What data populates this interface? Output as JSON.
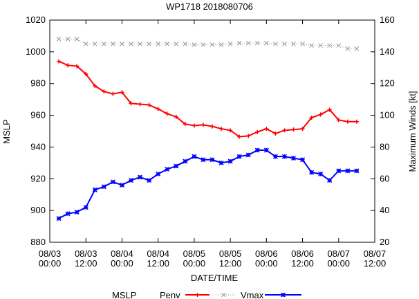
{
  "chart_data": {
    "type": "line",
    "title": "WP1718 2018080706",
    "xlabel": "DATE/TIME",
    "ylabel": "MSLP",
    "y2label": "Maximum Winds [kt]",
    "x_unit": "hours from 08/03 00:00",
    "xlim": [
      0,
      108
    ],
    "ylim": [
      880,
      1020
    ],
    "y2lim": [
      20,
      160
    ],
    "x_ticks": [
      {
        "value": 0,
        "date": "08/03",
        "time": "00:00"
      },
      {
        "value": 12,
        "date": "08/03",
        "time": "12:00"
      },
      {
        "value": 24,
        "date": "08/04",
        "time": "00:00"
      },
      {
        "value": 36,
        "date": "08/04",
        "time": "12:00"
      },
      {
        "value": 48,
        "date": "08/05",
        "time": "00:00"
      },
      {
        "value": 60,
        "date": "08/05",
        "time": "12:00"
      },
      {
        "value": 72,
        "date": "08/06",
        "time": "00:00"
      },
      {
        "value": 84,
        "date": "08/06",
        "time": "12:00"
      },
      {
        "value": 96,
        "date": "08/07",
        "time": "00:00"
      },
      {
        "value": 108,
        "date": "08/07",
        "time": "12:00"
      }
    ],
    "y_ticks": [
      880,
      900,
      920,
      940,
      960,
      980,
      1000,
      1020
    ],
    "y2_ticks": [
      20,
      40,
      60,
      80,
      100,
      120,
      140,
      160
    ],
    "x": [
      3,
      6,
      9,
      12,
      15,
      18,
      21,
      24,
      27,
      30,
      33,
      36,
      39,
      42,
      45,
      48,
      51,
      54,
      57,
      60,
      63,
      66,
      69,
      72,
      75,
      78,
      81,
      84,
      87,
      90,
      93,
      96,
      99,
      102
    ],
    "legend_title": "MSLP",
    "legend_placement": "bottom",
    "series": [
      {
        "name": "Penv",
        "axis": "left",
        "color": "#ff0000",
        "marker": "plus",
        "values": [
          994,
          991.5,
          991,
          986,
          978.5,
          975,
          973.5,
          974.5,
          967.5,
          967,
          966.5,
          964,
          961,
          959,
          954.5,
          953.5,
          954,
          953,
          951.5,
          950.5,
          946.5,
          947,
          949.5,
          951.5,
          948.5,
          950.5,
          951,
          951.5,
          958.5,
          960.5,
          963.5,
          957,
          956,
          956
        ]
      },
      {
        "name": "",
        "axis": "left",
        "color": "#999999",
        "marker": "x",
        "dashed": true,
        "values": [
          1008,
          1008,
          1008,
          1005,
          1005,
          1005,
          1005,
          1005,
          1005,
          1005,
          1005,
          1005,
          1005,
          1005,
          1005,
          1004.5,
          1004.5,
          1004.5,
          1004.5,
          1005,
          1005.5,
          1005.5,
          1005.5,
          1005.5,
          1005,
          1005,
          1005,
          1005,
          1004,
          1004,
          1004,
          1004,
          1002,
          1002
        ]
      },
      {
        "name": "Vmax",
        "axis": "right",
        "color": "#0000ff",
        "marker": "star",
        "values": [
          35,
          38,
          39,
          42,
          53,
          55,
          58,
          56,
          59,
          61,
          59,
          63,
          66,
          68,
          71,
          74,
          72,
          72,
          70,
          71,
          74,
          75,
          78,
          78,
          74,
          74,
          73,
          72,
          64,
          63,
          59,
          65,
          65,
          65
        ]
      }
    ]
  }
}
